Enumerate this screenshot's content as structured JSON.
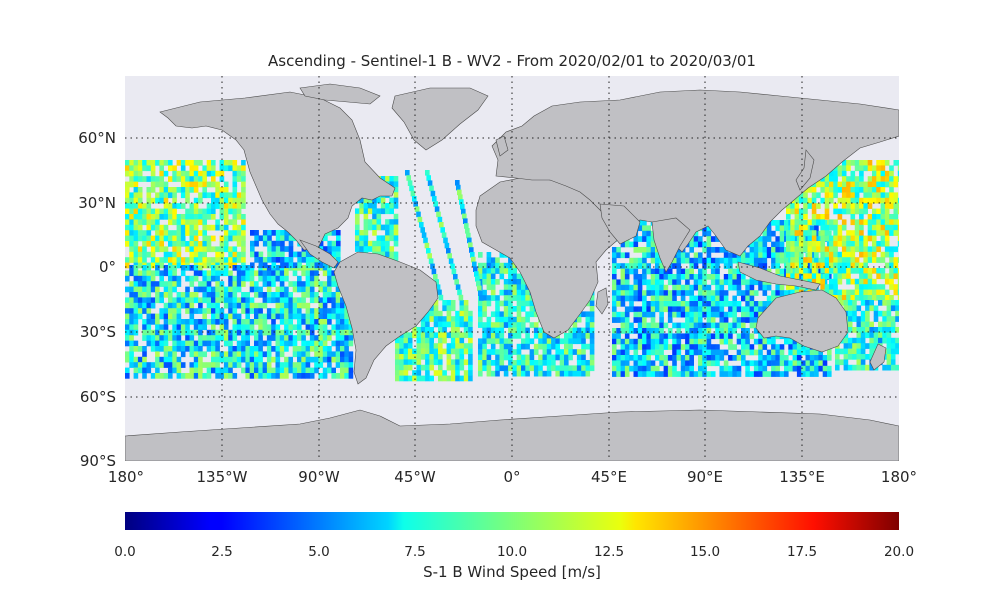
{
  "title": "Ascending - Sentinel-1 B - WV2 - From 2020/02/01 to 2020/03/01",
  "colorbar": {
    "label": "S-1 B Wind Speed [m/s]",
    "ticks": [
      "0.0",
      "2.5",
      "5.0",
      "7.5",
      "10.0",
      "12.5",
      "15.0",
      "17.5",
      "20.0"
    ],
    "range": [
      0,
      20
    ],
    "colormap": "jet"
  },
  "map": {
    "lon_range": [
      -180,
      180
    ],
    "lat_range": [
      -90,
      90
    ],
    "ocean_color": "#eaeaf2",
    "land_color": "#c0c0c4",
    "grid": "dotted",
    "lon_ticks": [
      "180°",
      "135°W",
      "90°W",
      "45°W",
      "0°",
      "45°E",
      "90°E",
      "135°E",
      "180°"
    ],
    "lat_ticks": [
      "60°N",
      "30°N",
      "0°",
      "30°S",
      "60°S",
      "90°S"
    ]
  }
}
